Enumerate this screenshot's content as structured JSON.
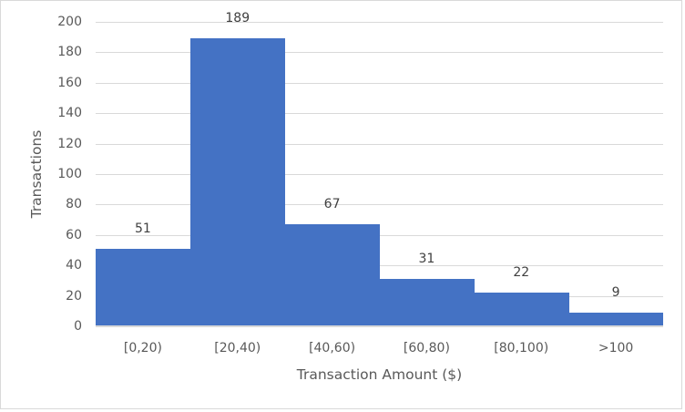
{
  "chart_data": {
    "type": "bar",
    "title": "",
    "xlabel": "Transaction Amount ($)",
    "ylabel": "Transactions",
    "categories": [
      "[0,20)",
      "[20,40)",
      "[40,60)",
      "[60,80)",
      "[80,100)",
      ">100"
    ],
    "values": [
      51,
      189,
      67,
      31,
      22,
      9
    ],
    "ylim": [
      0,
      200
    ],
    "yticks": [
      "0",
      "20",
      "40",
      "60",
      "80",
      "100",
      "120",
      "140",
      "160",
      "180",
      "200"
    ],
    "grid": true,
    "legend": null,
    "bar_gap": 0,
    "colors": {
      "bar": "#4472c4",
      "grid": "#d9d9d9",
      "text": "#595959"
    }
  }
}
